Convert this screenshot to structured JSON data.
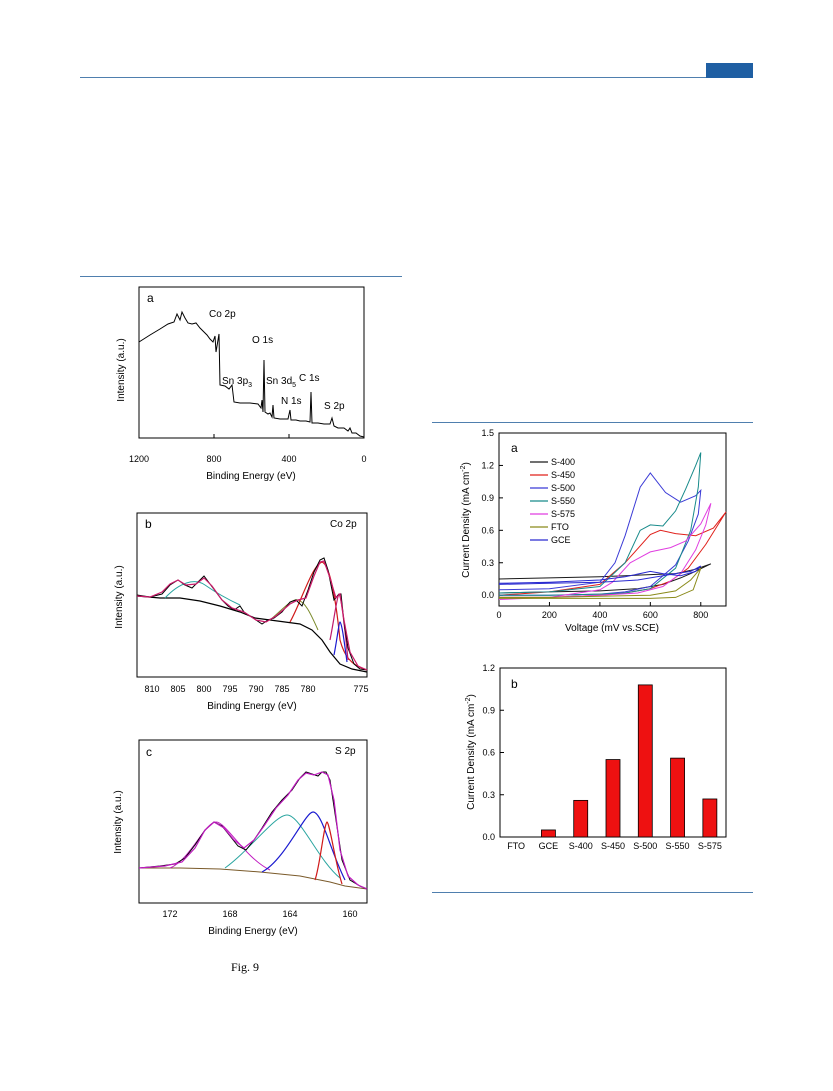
{
  "figure": {
    "caption": "Fig. 9"
  },
  "panels": {
    "a": {
      "label": "a",
      "xlabel": "Binding Energy (eV)",
      "ylabel": "Intensity (a.u.)",
      "xticks": [
        "1200",
        "800",
        "400",
        "0"
      ],
      "peaks": [
        "Co 2p",
        "O 1s",
        "Sn 3p3",
        "Sn 3d5",
        "C 1s",
        "N 1s",
        "S 2p"
      ]
    },
    "b": {
      "label": "b",
      "title": "Co 2p",
      "xlabel": "Binding Energy (eV)",
      "ylabel": "Intensity (a.u.)",
      "xticks": [
        "810",
        "805",
        "800",
        "795",
        "790",
        "785",
        "780",
        "775"
      ]
    },
    "c": {
      "label": "c",
      "title": "S 2p",
      "xlabel": "Binding Energy (eV)",
      "ylabel": "Intensity (a.u.)",
      "xticks": [
        "172",
        "168",
        "164",
        "160"
      ]
    },
    "cv": {
      "label": "a",
      "xlabel": "Voltage (mV vs.SCE)",
      "ylabel": "Current Density (mA cm",
      "ylabel_sup": "-2",
      "ylabel_end": ")",
      "xticks": [
        "0",
        "200",
        "400",
        "600",
        "800"
      ],
      "yticks": [
        "0.0",
        "0.3",
        "0.6",
        "0.9",
        "1.2",
        "1.5"
      ]
    },
    "bar": {
      "label": "b",
      "ylabel": "Current Density (mA cm",
      "ylabel_sup": "-2",
      "ylabel_end": ")",
      "yticks": [
        "0.0",
        "0.3",
        "0.6",
        "0.9",
        "1.2"
      ]
    }
  },
  "chart_data": [
    {
      "type": "line",
      "xlabel": "Voltage (mV vs.SCE)",
      "ylabel": "Current Density (mA cm-2)",
      "xlim": [
        0,
        900
      ],
      "ylim": [
        -0.1,
        1.5
      ],
      "legend_position": "upper-left",
      "series": [
        {
          "name": "S-400",
          "color": "#1a1a1a",
          "x": [
            0,
            200,
            400,
            550,
            650,
            720,
            760,
            840,
            780,
            700,
            600,
            500,
            400,
            200,
            0
          ],
          "y": [
            0.02,
            0.03,
            0.04,
            0.06,
            0.1,
            0.16,
            0.2,
            0.29,
            0.24,
            0.2,
            0.19,
            0.18,
            0.17,
            0.16,
            0.15
          ]
        },
        {
          "name": "S-450",
          "color": "#e0201b",
          "x": [
            0,
            200,
            400,
            500,
            600,
            680,
            750,
            820,
            900,
            850,
            780,
            700,
            640,
            600,
            500,
            400,
            200,
            0
          ],
          "y": [
            -0.02,
            -0.02,
            0.0,
            0.02,
            0.06,
            0.13,
            0.25,
            0.47,
            0.77,
            0.62,
            0.55,
            0.57,
            0.6,
            0.56,
            0.3,
            0.1,
            0.03,
            0.0
          ]
        },
        {
          "name": "S-500",
          "color": "#3b3bd6",
          "x": [
            0,
            200,
            400,
            500,
            600,
            700,
            750,
            790,
            800,
            780,
            720,
            660,
            600,
            560,
            500,
            460,
            400,
            200,
            0
          ],
          "y": [
            0.0,
            0.0,
            0.01,
            0.03,
            0.08,
            0.28,
            0.5,
            0.75,
            0.97,
            0.92,
            0.86,
            0.95,
            1.13,
            1.0,
            0.55,
            0.3,
            0.12,
            0.06,
            0.05
          ]
        },
        {
          "name": "S-550",
          "color": "#178a8a",
          "x": [
            0,
            200,
            400,
            500,
            600,
            700,
            760,
            790,
            800,
            780,
            740,
            700,
            650,
            600,
            560,
            500,
            400,
            200,
            0
          ],
          "y": [
            0.0,
            0.0,
            0.01,
            0.02,
            0.06,
            0.25,
            0.6,
            1.0,
            1.32,
            1.2,
            0.98,
            0.78,
            0.64,
            0.65,
            0.6,
            0.3,
            0.08,
            0.03,
            0.02
          ]
        },
        {
          "name": "S-575",
          "color": "#e03ee0",
          "x": [
            0,
            200,
            400,
            550,
            650,
            720,
            780,
            820,
            840,
            800,
            740,
            680,
            600,
            520,
            450,
            400,
            200,
            0
          ],
          "y": [
            -0.02,
            -0.02,
            0.0,
            0.02,
            0.08,
            0.2,
            0.42,
            0.65,
            0.85,
            0.66,
            0.5,
            0.44,
            0.4,
            0.3,
            0.12,
            0.05,
            -0.02,
            -0.04
          ]
        },
        {
          "name": "FTO",
          "color": "#8a8a1a",
          "x": [
            0,
            200,
            400,
            600,
            700,
            770,
            800,
            760,
            700,
            600,
            400,
            200,
            0
          ],
          "y": [
            -0.03,
            -0.03,
            -0.03,
            -0.03,
            -0.02,
            0.05,
            0.25,
            0.14,
            0.04,
            0.0,
            -0.01,
            -0.02,
            -0.02
          ]
        },
        {
          "name": "GCE",
          "color": "#2a2ad0",
          "x": [
            0,
            200,
            400,
            550,
            650,
            700,
            760,
            800,
            780,
            720,
            650,
            600,
            500,
            400,
            200,
            0
          ],
          "y": [
            0.1,
            0.11,
            0.12,
            0.14,
            0.18,
            0.2,
            0.22,
            0.27,
            0.22,
            0.18,
            0.2,
            0.22,
            0.17,
            0.14,
            0.12,
            0.11
          ]
        }
      ]
    },
    {
      "type": "bar",
      "ylabel": "Current Density (mA cm-2)",
      "ylim": [
        0,
        1.2
      ],
      "categories": [
        "FTO",
        "GCE",
        "S-400",
        "S-450",
        "S-500",
        "S-550",
        "S-575"
      ],
      "values": [
        0.0,
        0.05,
        0.26,
        0.55,
        1.08,
        0.56,
        0.27
      ],
      "color": "#ee1111"
    }
  ]
}
